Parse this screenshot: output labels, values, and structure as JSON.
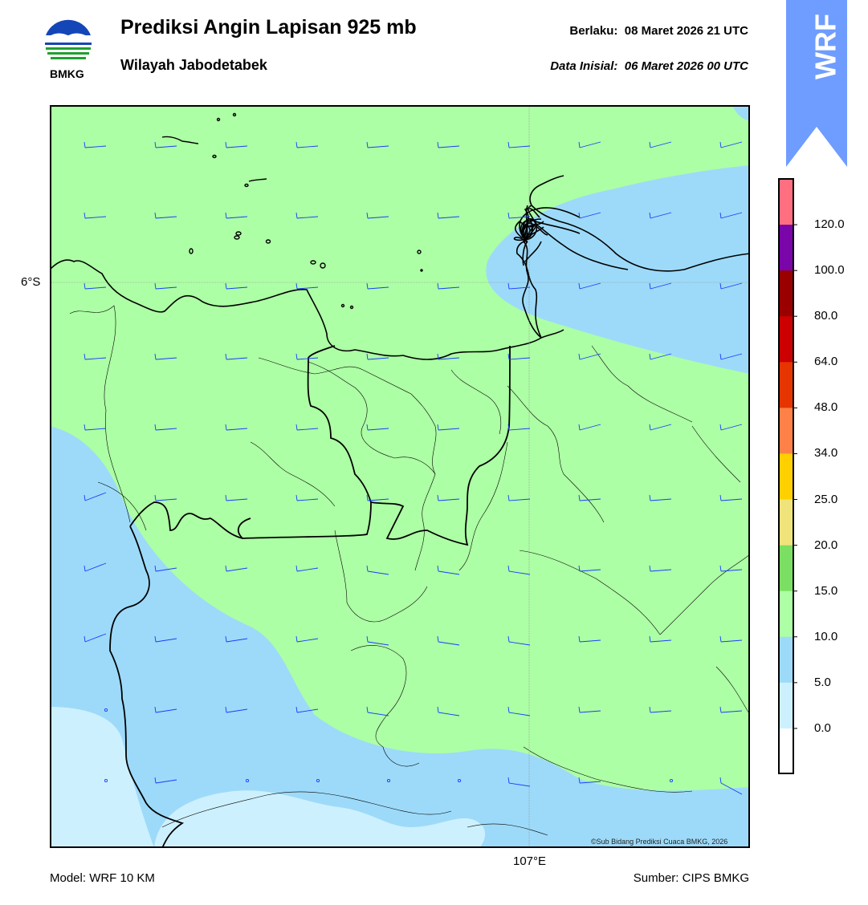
{
  "header": {
    "title": "Prediksi Angin Lapisan 925 mb",
    "subtitle": "Wilayah Jabodetabek",
    "valid_label": "Berlaku:",
    "valid_value": "08 Maret 2026 21 UTC",
    "initial_label": "Data Inisial:",
    "initial_value": "06 Maret 2026 00 UTC"
  },
  "logo": {
    "text": "BMKG",
    "icon": "bmkg-logo"
  },
  "ribbon": {
    "text": "WRF",
    "color": "#6f9cff"
  },
  "map": {
    "lat_label": "6°S",
    "lon_label": "107°E",
    "credit": "©Sub Bidang Prediksi Cuaca BMKG, 2026",
    "colors": {
      "light_blue": "#cdf0ff",
      "blue": "#9ddaf9",
      "green": "#adffa5",
      "barb": "#1a3cff",
      "border": "#000000"
    }
  },
  "colorbar": {
    "labels": [
      "120.0",
      "100.0",
      "80.0",
      "64.0",
      "48.0",
      "34.0",
      "25.0",
      "20.0",
      "15.0",
      "10.0",
      "5.0",
      "0.0"
    ],
    "colors": [
      "#ff6f80",
      "#7a05a9",
      "#9a0000",
      "#cc0000",
      "#e63500",
      "#ff8148",
      "#ffd000",
      "#efe37a",
      "#7adf62",
      "#adffa5",
      "#9ddaf9",
      "#cdf0ff",
      "#ffffff"
    ]
  },
  "footer": {
    "model": "Model: WRF 10 KM",
    "source": "Sumber: CIPS BMKG"
  }
}
